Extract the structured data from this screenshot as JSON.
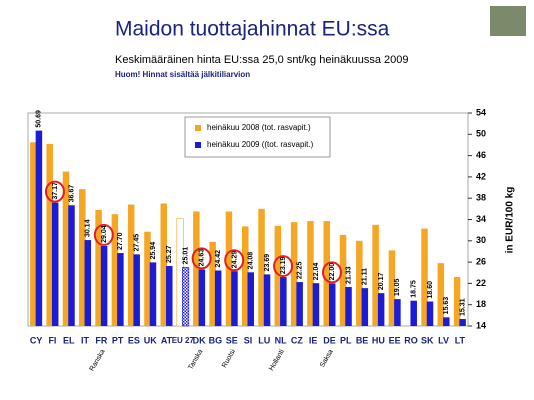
{
  "chart_data": {
    "type": "bar",
    "title": "Maidon tuottajahinnat EU:ssa",
    "subtitle": "Keskimääräinen hinta EU:ssa 25,0 snt/kg heinäkuussa 2009",
    "note": "Huom! Hinnat sisältää jälkitiliarvion",
    "y_label": "in EUR/100 kg",
    "categories": [
      "CY",
      "FI",
      "EL",
      "IT",
      "FR",
      "PT",
      "ES",
      "UK",
      "AT",
      "EU 27",
      "DK",
      "BG",
      "SE",
      "SI",
      "LU",
      "NL",
      "CZ",
      "IE",
      "DE",
      "PL",
      "BE",
      "HU",
      "EE",
      "RO",
      "SK",
      "LV",
      "LT"
    ],
    "series": [
      {
        "name": "heinäkuu 2008 (tot. rasvapit.)",
        "color": "#f5a623",
        "values": [
          48.5,
          48.2,
          43,
          39.7,
          35.8,
          35,
          36.8,
          31.7,
          37,
          34.2,
          35.5,
          29.8,
          35.5,
          32.7,
          36,
          32.8,
          33.5,
          33.7,
          33.7,
          31.1,
          30,
          33,
          28.2,
          null,
          32.3,
          25.8,
          23.2
        ]
      },
      {
        "name": "heinäkuu 2009 ((tot. rasvapit.)",
        "color": "#1c1cd6",
        "values": [
          50.69,
          37.17,
          36.67,
          30.14,
          29.04,
          27.7,
          27.45,
          25.94,
          25.27,
          25.01,
          24.63,
          24.42,
          24.29,
          24.08,
          23.69,
          23.19,
          22.25,
          22.04,
          22,
          21.33,
          21.11,
          20.17,
          19.05,
          18.75,
          18.6,
          15.63,
          15.31
        ],
        "value_labels": [
          "50.69",
          "37.17",
          "36.67",
          "30.14",
          "29.04",
          "27.70",
          "27.45",
          "25.94",
          "25.27",
          "25.01",
          "24.63",
          "24.42",
          "24.29",
          "24.08",
          "23.69",
          "23.19",
          "22.25",
          "22.04",
          "22.00",
          "21.33",
          "21.11",
          "20.17",
          "19.05",
          "18.75",
          "18.60",
          "15.63",
          "15.31"
        ]
      }
    ],
    "ylim": [
      14,
      54
    ],
    "yticks": [
      14,
      18,
      22,
      26,
      30,
      34,
      38,
      42,
      46,
      50,
      54
    ],
    "hatched": "EU 27",
    "highlight": [
      "FI",
      "FR",
      "DK",
      "SE",
      "NL",
      "DE"
    ],
    "annotations": [
      {
        "text": "Ranska",
        "category": "FR"
      },
      {
        "text": "Tanska",
        "category": "DK"
      },
      {
        "text": "Ruotsi",
        "category": "SE"
      },
      {
        "text": "Hollanti",
        "category": "NL"
      },
      {
        "text": "Saksa",
        "category": "DE"
      }
    ]
  }
}
